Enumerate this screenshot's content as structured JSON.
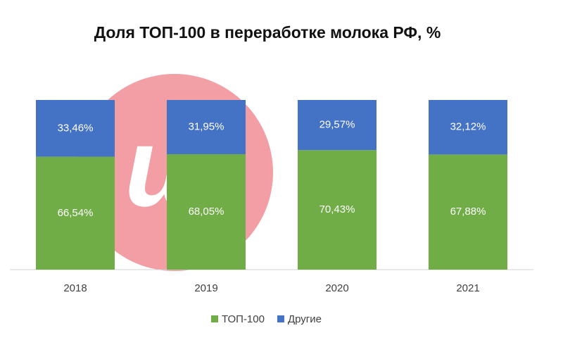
{
  "chart_data": {
    "type": "stacked_bar",
    "title": "Доля ТОП-100 в переработке молока РФ, %",
    "categories": [
      "2018",
      "2019",
      "2020",
      "2021"
    ],
    "series": [
      {
        "name": "ТОП-100",
        "color": "#70ad47",
        "values": [
          66.54,
          68.05,
          70.43,
          67.88
        ],
        "value_labels": [
          "66,54%",
          "68,05%",
          "70,43%",
          "67,88%"
        ]
      },
      {
        "name": "Другие",
        "color": "#4472c4",
        "values": [
          33.46,
          31.95,
          29.57,
          32.12
        ],
        "value_labels": [
          "33,46%",
          "31,95%",
          "29,57%",
          "32,12%"
        ]
      }
    ],
    "ylim": [
      0,
      100
    ],
    "legend": "bottom"
  }
}
